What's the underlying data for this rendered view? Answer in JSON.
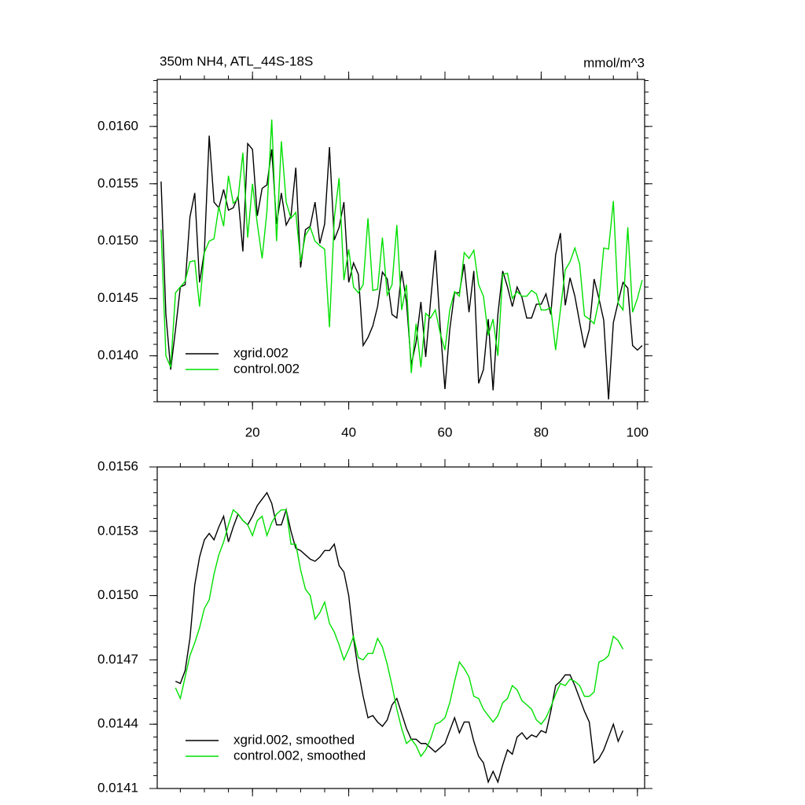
{
  "chart_data": [
    {
      "type": "line",
      "title": "350m NH4, ATL_44S-18S",
      "units": "mmol/m^3",
      "x": [
        1,
        2,
        3,
        4,
        5,
        6,
        7,
        8,
        9,
        10,
        11,
        12,
        13,
        14,
        15,
        16,
        17,
        18,
        19,
        20,
        21,
        22,
        23,
        24,
        25,
        26,
        27,
        28,
        29,
        30,
        31,
        32,
        33,
        34,
        35,
        36,
        37,
        38,
        39,
        40,
        41,
        42,
        43,
        44,
        45,
        46,
        47,
        48,
        49,
        50,
        51,
        52,
        53,
        54,
        55,
        56,
        57,
        58,
        59,
        60,
        61,
        62,
        63,
        64,
        65,
        66,
        67,
        68,
        69,
        70,
        71,
        72,
        73,
        74,
        75,
        76,
        77,
        78,
        79,
        80,
        81,
        82,
        83,
        84,
        85,
        86,
        87,
        88,
        89,
        90,
        91,
        92,
        93,
        94,
        95,
        96,
        97,
        98,
        99,
        100,
        101
      ],
      "series": [
        {
          "name": "xgrid.002",
          "color": "#000000",
          "values": [
            0.01552,
            0.01436,
            0.01388,
            0.01423,
            0.0146,
            0.01462,
            0.01521,
            0.01542,
            0.01464,
            0.01491,
            0.01592,
            0.01534,
            0.01529,
            0.01545,
            0.01527,
            0.01529,
            0.01539,
            0.01491,
            0.01585,
            0.0158,
            0.01522,
            0.01546,
            0.01549,
            0.0158,
            0.01515,
            0.01542,
            0.01514,
            0.01522,
            0.01564,
            0.01477,
            0.0151,
            0.01513,
            0.01534,
            0.01498,
            0.01515,
            0.01582,
            0.01501,
            0.01512,
            0.01534,
            0.01464,
            0.01481,
            0.01471,
            0.01409,
            0.01416,
            0.01426,
            0.01443,
            0.01473,
            0.01467,
            0.01436,
            0.01433,
            0.01474,
            0.01447,
            0.01392,
            0.01412,
            0.01447,
            0.01399,
            0.01447,
            0.01492,
            0.01426,
            0.01371,
            0.01423,
            0.01455,
            0.01455,
            0.0148,
            0.01438,
            0.01474,
            0.01376,
            0.01388,
            0.01432,
            0.0137,
            0.01436,
            0.01474,
            0.0146,
            0.01443,
            0.0146,
            0.01451,
            0.01433,
            0.01433,
            0.01445,
            0.01445,
            0.01454,
            0.01436,
            0.01488,
            0.01507,
            0.01444,
            0.01468,
            0.01452,
            0.01429,
            0.01407,
            0.01423,
            0.01467,
            0.0145,
            0.01431,
            0.01362,
            0.01429,
            0.01447,
            0.01464,
            0.01459,
            0.01409,
            0.01405,
            0.01409
          ]
        },
        {
          "name": "control.002",
          "color": "#00e000",
          "values": [
            0.0151,
            0.014,
            0.0139,
            0.01455,
            0.0146,
            0.01465,
            0.01482,
            0.01483,
            0.01443,
            0.0149,
            0.015,
            0.01502,
            0.0153,
            0.01513,
            0.01557,
            0.01533,
            0.01537,
            0.01577,
            0.01503,
            0.0155,
            0.01515,
            0.01485,
            0.01526,
            0.01606,
            0.015,
            0.01587,
            0.01534,
            0.0152,
            0.01525,
            0.01482,
            0.01505,
            0.01512,
            0.015,
            0.01496,
            0.01493,
            0.01425,
            0.0152,
            0.01555,
            0.01466,
            0.01493,
            0.0146,
            0.01455,
            0.01462,
            0.0152,
            0.01457,
            0.01458,
            0.01503,
            0.01453,
            0.01462,
            0.01514,
            0.0144,
            0.01462,
            0.01385,
            0.01428,
            0.0139,
            0.01437,
            0.01433,
            0.0144,
            0.0142,
            0.01405,
            0.0144,
            0.01456,
            0.01452,
            0.0149,
            0.01485,
            0.01492,
            0.01462,
            0.01452,
            0.01418,
            0.01432,
            0.014,
            0.01471,
            0.01472,
            0.0145,
            0.01456,
            0.01452,
            0.01452,
            0.01457,
            0.01454,
            0.0144,
            0.0144,
            0.01442,
            0.01405,
            0.0144,
            0.01475,
            0.01482,
            0.01494,
            0.0148,
            0.01435,
            0.01432,
            0.01428,
            0.01448,
            0.01494,
            0.01493,
            0.01535,
            0.01446,
            0.0144,
            0.01512,
            0.01438,
            0.0145,
            0.01466
          ]
        }
      ],
      "xlim": [
        0.2,
        101.5
      ],
      "xticks": [
        20,
        40,
        60,
        80,
        100
      ],
      "xtick_labels": true,
      "ylim": [
        0.0136,
        0.01641
      ],
      "yticks": [
        {
          "value": 0.014,
          "label": "0.0140"
        },
        0.0145,
        {
          "value": 0.015,
          "label": "0.0150"
        },
        0.0155,
        {
          "value": 0.016,
          "label": "0.0160"
        }
      ],
      "legend": "lower left"
    },
    {
      "type": "line",
      "x": [
        4,
        5,
        6,
        7,
        8,
        9,
        10,
        11,
        12,
        13,
        14,
        15,
        16,
        17,
        18,
        19,
        20,
        21,
        22,
        23,
        24,
        25,
        26,
        27,
        28,
        29,
        30,
        31,
        32,
        33,
        34,
        35,
        36,
        37,
        38,
        39,
        40,
        41,
        42,
        43,
        44,
        45,
        46,
        47,
        48,
        49,
        50,
        51,
        52,
        53,
        54,
        55,
        56,
        57,
        58,
        59,
        60,
        61,
        62,
        63,
        64,
        65,
        66,
        67,
        68,
        69,
        70,
        71,
        72,
        73,
        74,
        75,
        76,
        77,
        78,
        79,
        80,
        81,
        82,
        83,
        84,
        85,
        86,
        87,
        88,
        89,
        90,
        91,
        92,
        93,
        94,
        95,
        96,
        97
      ],
      "series": [
        {
          "name": "xgrid.002, smoothed",
          "color": "#000000",
          "values": [
            0.0146,
            0.01459,
            0.01465,
            0.0148,
            0.01505,
            0.01518,
            0.01526,
            0.01529,
            0.01526,
            0.01532,
            0.01537,
            0.01525,
            0.01532,
            0.01538,
            0.01535,
            0.01533,
            0.01537,
            0.01542,
            0.01545,
            0.01548,
            0.01543,
            0.01533,
            0.01533,
            0.0154,
            0.0153,
            0.01522,
            0.01521,
            0.01519,
            0.01517,
            0.01516,
            0.01518,
            0.01521,
            0.01521,
            0.01524,
            0.01514,
            0.01511,
            0.015,
            0.0148,
            0.01465,
            0.01453,
            0.01443,
            0.01444,
            0.01441,
            0.01439,
            0.01442,
            0.01449,
            0.01452,
            0.01445,
            0.01438,
            0.01433,
            0.01433,
            0.01431,
            0.01431,
            0.01429,
            0.01427,
            0.01429,
            0.01431,
            0.01437,
            0.01443,
            0.01436,
            0.01441,
            0.01441,
            0.01432,
            0.01425,
            0.01422,
            0.01413,
            0.01418,
            0.01413,
            0.01421,
            0.01428,
            0.01426,
            0.01434,
            0.01436,
            0.01433,
            0.01435,
            0.01434,
            0.01437,
            0.01436,
            0.01446,
            0.01458,
            0.0146,
            0.01463,
            0.01463,
            0.01458,
            0.01452,
            0.01446,
            0.01441,
            0.01422,
            0.01424,
            0.01428,
            0.01434,
            0.0144,
            0.01432,
            0.01437
          ]
        },
        {
          "name": "control.002, smoothed",
          "color": "#00e000",
          "values": [
            0.01457,
            0.01452,
            0.01462,
            0.01472,
            0.01478,
            0.01485,
            0.01494,
            0.01498,
            0.0151,
            0.01519,
            0.01525,
            0.01533,
            0.0154,
            0.01538,
            0.01535,
            0.01533,
            0.01528,
            0.01535,
            0.01537,
            0.01528,
            0.01534,
            0.01538,
            0.0154,
            0.0154,
            0.01524,
            0.01524,
            0.01512,
            0.01503,
            0.015,
            0.01489,
            0.01492,
            0.01497,
            0.01487,
            0.01483,
            0.01477,
            0.0147,
            0.01475,
            0.01481,
            0.01471,
            0.0147,
            0.01473,
            0.01473,
            0.0148,
            0.01476,
            0.01468,
            0.01458,
            0.01447,
            0.01438,
            0.01431,
            0.01433,
            0.0143,
            0.01425,
            0.01428,
            0.01433,
            0.0144,
            0.01441,
            0.01443,
            0.0145,
            0.0146,
            0.01469,
            0.01466,
            0.01462,
            0.01453,
            0.01452,
            0.01447,
            0.01444,
            0.01441,
            0.01444,
            0.0145,
            0.01452,
            0.01458,
            0.01456,
            0.01451,
            0.01449,
            0.01447,
            0.01442,
            0.0144,
            0.01443,
            0.01448,
            0.01454,
            0.01459,
            0.01458,
            0.01461,
            0.0146,
            0.01458,
            0.01453,
            0.01453,
            0.01455,
            0.01469,
            0.0147,
            0.01472,
            0.01481,
            0.01479,
            0.01475
          ]
        }
      ],
      "xlim": [
        0.2,
        101.5
      ],
      "xticks": [
        20,
        40,
        60,
        80,
        100
      ],
      "xtick_labels": false,
      "ylim": [
        0.0141,
        0.0156
      ],
      "yticks": [
        0.0141,
        0.0144,
        0.0147,
        {
          "value": 0.015,
          "label": "0.0150"
        },
        0.0153,
        0.0156
      ],
      "legend": "lower left"
    }
  ]
}
